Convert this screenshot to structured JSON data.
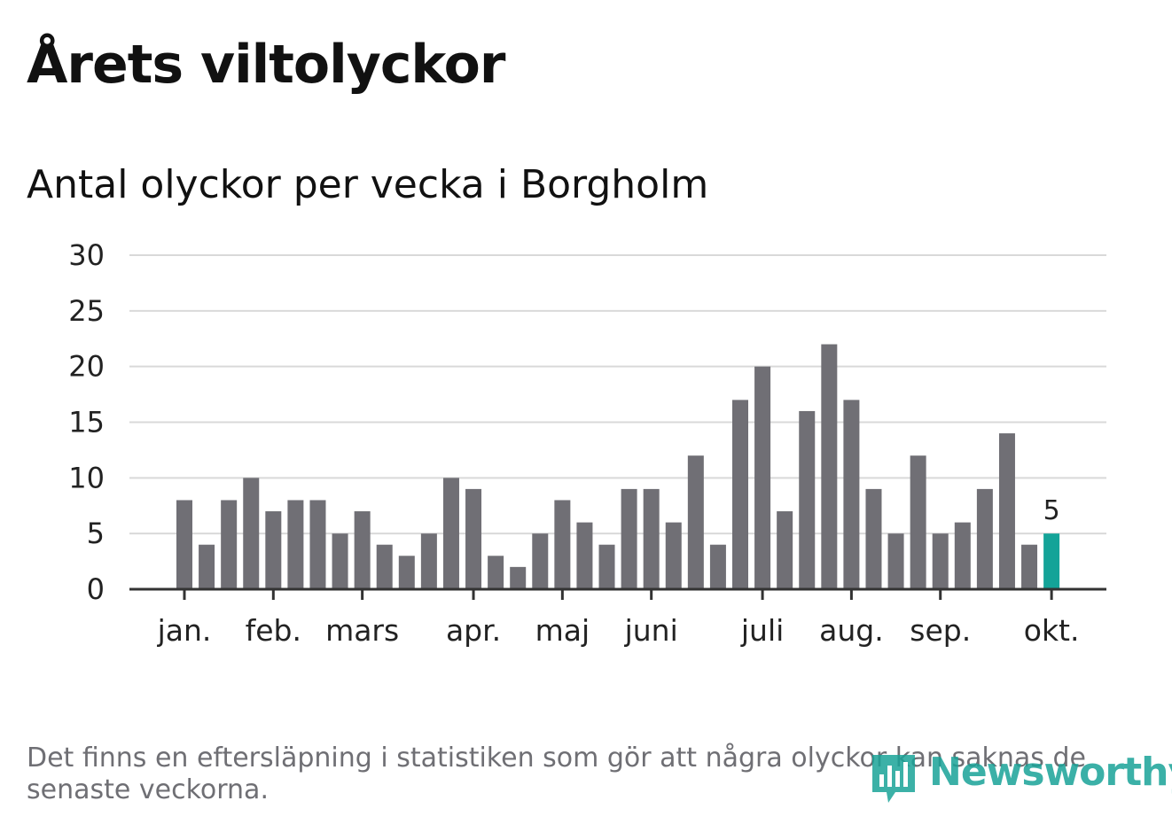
{
  "title": "Årets viltolyckor",
  "subtitle": "Antal olyckor per vecka i Borgholm",
  "footnote": "Det finns en eftersläpning i statistiken som gör att några olyckor kan saknas de senaste veckorna.",
  "logo": {
    "text": "Newsworthy",
    "icon": "newsworthy-bar-chart-icon"
  },
  "colors": {
    "bar": "#706f75",
    "highlight": "#14a398",
    "grid": "#d9d9d9",
    "axis": "#333333"
  },
  "chart_data": {
    "type": "bar",
    "title": "Antal olyckor per vecka i Borgholm",
    "values": [
      8,
      4,
      8,
      10,
      7,
      8,
      8,
      5,
      7,
      4,
      3,
      5,
      10,
      9,
      3,
      2,
      5,
      8,
      6,
      4,
      9,
      9,
      6,
      12,
      4,
      17,
      20,
      7,
      16,
      22,
      17,
      9,
      5,
      12,
      5,
      6,
      9,
      14,
      4,
      5
    ],
    "ylim": [
      0,
      30
    ],
    "yticks": [
      0,
      5,
      10,
      15,
      20,
      25,
      30
    ],
    "month_labels": [
      {
        "label": "jan.",
        "bar_index": 0
      },
      {
        "label": "feb.",
        "bar_index": 4
      },
      {
        "label": "mars",
        "bar_index": 8
      },
      {
        "label": "apr.",
        "bar_index": 13
      },
      {
        "label": "maj",
        "bar_index": 17
      },
      {
        "label": "juni",
        "bar_index": 21
      },
      {
        "label": "juli",
        "bar_index": 26
      },
      {
        "label": "aug.",
        "bar_index": 30
      },
      {
        "label": "sep.",
        "bar_index": 34
      },
      {
        "label": "okt.",
        "bar_index": 39
      }
    ],
    "highlight": {
      "bar_index": 39,
      "label": "5"
    },
    "grid": true,
    "legend": "none"
  }
}
